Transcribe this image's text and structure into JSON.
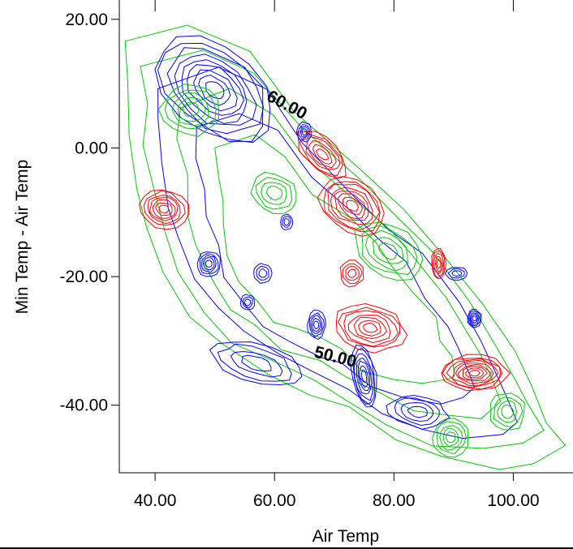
{
  "chart_data": {
    "type": "contour",
    "title": "",
    "xlabel": "Air Temp",
    "ylabel": "Min Temp - Air Temp",
    "xlim": [
      34.0,
      110.0
    ],
    "ylim": [
      -50.5,
      23.0
    ],
    "x_ticks": [
      "40.00",
      "60.00",
      "80.00",
      "100.00"
    ],
    "x_tick_values": [
      40,
      60,
      80,
      100
    ],
    "y_ticks": [
      "20.00",
      "0.00",
      "-20.00",
      "-40.00"
    ],
    "y_tick_values": [
      20,
      0,
      -20,
      -40
    ],
    "grid": false,
    "colors": {
      "low": "#0000ff",
      "mid": "#00cc00",
      "high": "#ff0000"
    },
    "contour_labels": [
      {
        "text": "60.00",
        "x": 58.5,
        "y": 7.5,
        "angle": 28
      },
      {
        "text": "50.00",
        "x": 66.5,
        "y": -32.5,
        "angle": 14
      }
    ],
    "hulls": [
      {
        "name": "outer-boundary",
        "color": "#00cc00",
        "points": [
          [
            35,
            16.5
          ],
          [
            46,
            19.5
          ],
          [
            56,
            15
          ],
          [
            64,
            5
          ],
          [
            74,
            -3
          ],
          [
            82,
            -10
          ],
          [
            88,
            -16
          ],
          [
            95,
            -24
          ],
          [
            100,
            -31
          ],
          [
            103,
            -37
          ],
          [
            106,
            -42
          ],
          [
            108,
            -47
          ],
          [
            104,
            -49
          ],
          [
            97,
            -49.5
          ],
          [
            88,
            -48
          ],
          [
            80,
            -45
          ],
          [
            73,
            -41
          ],
          [
            66,
            -38
          ],
          [
            59,
            -35
          ],
          [
            52,
            -31
          ],
          [
            46,
            -26
          ],
          [
            42,
            -20
          ],
          [
            39,
            -13
          ],
          [
            37,
            -6
          ],
          [
            35.5,
            2
          ],
          [
            35,
            10
          ]
        ]
      }
    ],
    "contour_centers": [
      {
        "name": "blue-ridge-northwest",
        "color": "#0000ff",
        "x": 50,
        "y": 9,
        "rx": 11,
        "ry": 7,
        "rings": 9,
        "rotation": -35
      },
      {
        "name": "green-hill-northwest",
        "color": "#00cc00",
        "x": 46,
        "y": 6,
        "rx": 5,
        "ry": 4,
        "rings": 5,
        "rotation": 0
      },
      {
        "name": "red-peak-west",
        "color": "#ff0000",
        "x": 41.5,
        "y": -9.5,
        "rx": 4,
        "ry": 3,
        "rings": 7,
        "rotation": -10
      },
      {
        "name": "blue-peak-west",
        "color": "#0000ff",
        "x": 49,
        "y": -18,
        "rx": 2,
        "ry": 2,
        "rings": 5,
        "rotation": 0
      },
      {
        "name": "blue-peak-center-west",
        "color": "#0000ff",
        "x": 58,
        "y": -19.5,
        "rx": 1.5,
        "ry": 1.5,
        "rings": 3,
        "rotation": 0
      },
      {
        "name": "red-peak-center-north",
        "color": "#ff0000",
        "x": 73,
        "y": -9,
        "rx": 6,
        "ry": 4,
        "rings": 8,
        "rotation": -30
      },
      {
        "name": "red-ridge-north",
        "color": "#ff0000",
        "x": 68,
        "y": -1,
        "rx": 5,
        "ry": 2.5,
        "rings": 6,
        "rotation": -40
      },
      {
        "name": "red-peak-center",
        "color": "#ff0000",
        "x": 73,
        "y": -19.5,
        "rx": 2,
        "ry": 2,
        "rings": 4,
        "rotation": 0
      },
      {
        "name": "red-peak-east",
        "color": "#ff0000",
        "x": 87.5,
        "y": -18,
        "rx": 1.2,
        "ry": 2.5,
        "rings": 5,
        "rotation": 0
      },
      {
        "name": "red-ridge-central",
        "color": "#ff0000",
        "x": 76,
        "y": -28,
        "rx": 6,
        "ry": 3.5,
        "rings": 7,
        "rotation": -10
      },
      {
        "name": "blue-peak-central",
        "color": "#0000ff",
        "x": 67,
        "y": -27.5,
        "rx": 1.5,
        "ry": 2.2,
        "rings": 5,
        "rotation": 0
      },
      {
        "name": "blue-ridge-south",
        "color": "#0000ff",
        "x": 75,
        "y": -35.5,
        "rx": 2,
        "ry": 5,
        "rings": 7,
        "rotation": 10
      },
      {
        "name": "red-peak-southeast",
        "color": "#ff0000",
        "x": 93.5,
        "y": -35,
        "rx": 5.5,
        "ry": 2.8,
        "rings": 9,
        "rotation": 0
      },
      {
        "name": "blue-peak-east",
        "color": "#0000ff",
        "x": 93.5,
        "y": -26.5,
        "rx": 1.2,
        "ry": 1.4,
        "rings": 5,
        "rotation": 0
      },
      {
        "name": "blue-ring-east",
        "color": "#0000ff",
        "x": 90.5,
        "y": -19.5,
        "rx": 1.8,
        "ry": 1.0,
        "rings": 3,
        "rotation": 0
      },
      {
        "name": "blue-peak-north",
        "color": "#0000ff",
        "x": 65,
        "y": 2.5,
        "rx": 1.2,
        "ry": 1.5,
        "rings": 4,
        "rotation": 0
      },
      {
        "name": "blue-peak-small",
        "color": "#0000ff",
        "x": 62,
        "y": -11.5,
        "rx": 1,
        "ry": 1.2,
        "rings": 3,
        "rotation": 0
      },
      {
        "name": "blue-peak-small-2",
        "color": "#0000ff",
        "x": 55.5,
        "y": -24,
        "rx": 1.2,
        "ry": 1.2,
        "rings": 3,
        "rotation": 0
      },
      {
        "name": "green-hill-south",
        "color": "#00cc00",
        "x": 89.5,
        "y": -45,
        "rx": 3,
        "ry": 3,
        "rings": 5,
        "rotation": 0
      },
      {
        "name": "green-hill-southeast",
        "color": "#00cc00",
        "x": 99,
        "y": -41,
        "rx": 3,
        "ry": 3,
        "rings": 4,
        "rotation": 0
      },
      {
        "name": "green-hill-center",
        "color": "#00cc00",
        "x": 60,
        "y": -7,
        "rx": 4,
        "ry": 3,
        "rings": 4,
        "rotation": -20
      },
      {
        "name": "blue-band-southwest",
        "color": "#0000ff",
        "x": 57,
        "y": -33.5,
        "rx": 8,
        "ry": 3,
        "rings": 4,
        "rotation": -15
      },
      {
        "name": "blue-ring-south-center",
        "color": "#0000ff",
        "x": 84,
        "y": -41,
        "rx": 5,
        "ry": 2.5,
        "rings": 4,
        "rotation": -10
      },
      {
        "name": "green-ring-central",
        "color": "#00cc00",
        "x": 79,
        "y": -16,
        "rx": 6,
        "ry": 4,
        "rings": 5,
        "rotation": -30
      }
    ]
  }
}
